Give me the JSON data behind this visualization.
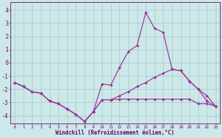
{
  "xlabel": "Windchill (Refroidissement éolien,°C)",
  "x_ticks": [
    0,
    1,
    2,
    3,
    4,
    5,
    6,
    7,
    8,
    9,
    10,
    11,
    12,
    13,
    14,
    15,
    16,
    17,
    18,
    19,
    20,
    21,
    22,
    23
  ],
  "ylim": [
    -4.6,
    4.6
  ],
  "xlim": [
    -0.5,
    23.5
  ],
  "yticks": [
    -4,
    -3,
    -2,
    -1,
    0,
    1,
    2,
    3,
    4
  ],
  "bg_color": "#cce8e8",
  "grid_color": "#aacccc",
  "line_color": "#993399",
  "line1_y": [
    -1.5,
    -1.8,
    -2.2,
    -2.3,
    -2.9,
    -3.1,
    -3.5,
    -3.9,
    -4.45,
    -3.7,
    -1.6,
    -1.7,
    -0.35,
    0.85,
    1.3,
    3.8,
    2.6,
    2.3,
    -0.5,
    -0.6,
    -1.4,
    -2.0,
    -2.9,
    -3.3
  ],
  "line2_y": [
    -1.5,
    -1.8,
    -2.2,
    -2.3,
    -2.9,
    -3.1,
    -3.5,
    -3.9,
    -4.45,
    -3.7,
    -2.8,
    -2.8,
    -2.75,
    -2.75,
    -2.75,
    -2.75,
    -2.75,
    -2.75,
    -2.75,
    -2.75,
    -2.75,
    -3.1,
    -3.1,
    -3.3
  ],
  "line3_y": [
    -1.5,
    -1.8,
    -2.2,
    -2.3,
    -2.9,
    -3.1,
    -3.5,
    -3.9,
    -4.45,
    -3.7,
    -2.8,
    -2.8,
    -2.5,
    -2.2,
    -1.8,
    -1.5,
    -1.1,
    -0.8,
    -0.5,
    -0.6,
    -1.4,
    -2.0,
    -2.5,
    -3.3
  ]
}
